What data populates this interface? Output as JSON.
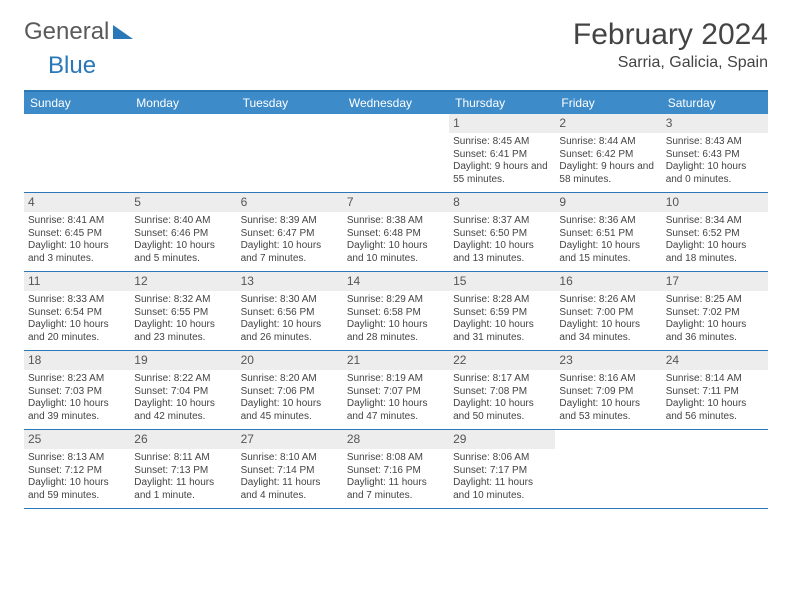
{
  "brand": {
    "part1": "General",
    "part2": "Blue"
  },
  "title": "February 2024",
  "location": "Sarria, Galicia, Spain",
  "colors": {
    "header_bg": "#3d8bc9",
    "border": "#2a78b8",
    "daynum_bg": "#ededed",
    "text": "#444444"
  },
  "dow": [
    "Sunday",
    "Monday",
    "Tuesday",
    "Wednesday",
    "Thursday",
    "Friday",
    "Saturday"
  ],
  "weeks": [
    [
      {
        "n": "",
        "sr": "",
        "ss": "",
        "dl": ""
      },
      {
        "n": "",
        "sr": "",
        "ss": "",
        "dl": ""
      },
      {
        "n": "",
        "sr": "",
        "ss": "",
        "dl": ""
      },
      {
        "n": "",
        "sr": "",
        "ss": "",
        "dl": ""
      },
      {
        "n": "1",
        "sr": "Sunrise: 8:45 AM",
        "ss": "Sunset: 6:41 PM",
        "dl": "Daylight: 9 hours and 55 minutes."
      },
      {
        "n": "2",
        "sr": "Sunrise: 8:44 AM",
        "ss": "Sunset: 6:42 PM",
        "dl": "Daylight: 9 hours and 58 minutes."
      },
      {
        "n": "3",
        "sr": "Sunrise: 8:43 AM",
        "ss": "Sunset: 6:43 PM",
        "dl": "Daylight: 10 hours and 0 minutes."
      }
    ],
    [
      {
        "n": "4",
        "sr": "Sunrise: 8:41 AM",
        "ss": "Sunset: 6:45 PM",
        "dl": "Daylight: 10 hours and 3 minutes."
      },
      {
        "n": "5",
        "sr": "Sunrise: 8:40 AM",
        "ss": "Sunset: 6:46 PM",
        "dl": "Daylight: 10 hours and 5 minutes."
      },
      {
        "n": "6",
        "sr": "Sunrise: 8:39 AM",
        "ss": "Sunset: 6:47 PM",
        "dl": "Daylight: 10 hours and 7 minutes."
      },
      {
        "n": "7",
        "sr": "Sunrise: 8:38 AM",
        "ss": "Sunset: 6:48 PM",
        "dl": "Daylight: 10 hours and 10 minutes."
      },
      {
        "n": "8",
        "sr": "Sunrise: 8:37 AM",
        "ss": "Sunset: 6:50 PM",
        "dl": "Daylight: 10 hours and 13 minutes."
      },
      {
        "n": "9",
        "sr": "Sunrise: 8:36 AM",
        "ss": "Sunset: 6:51 PM",
        "dl": "Daylight: 10 hours and 15 minutes."
      },
      {
        "n": "10",
        "sr": "Sunrise: 8:34 AM",
        "ss": "Sunset: 6:52 PM",
        "dl": "Daylight: 10 hours and 18 minutes."
      }
    ],
    [
      {
        "n": "11",
        "sr": "Sunrise: 8:33 AM",
        "ss": "Sunset: 6:54 PM",
        "dl": "Daylight: 10 hours and 20 minutes."
      },
      {
        "n": "12",
        "sr": "Sunrise: 8:32 AM",
        "ss": "Sunset: 6:55 PM",
        "dl": "Daylight: 10 hours and 23 minutes."
      },
      {
        "n": "13",
        "sr": "Sunrise: 8:30 AM",
        "ss": "Sunset: 6:56 PM",
        "dl": "Daylight: 10 hours and 26 minutes."
      },
      {
        "n": "14",
        "sr": "Sunrise: 8:29 AM",
        "ss": "Sunset: 6:58 PM",
        "dl": "Daylight: 10 hours and 28 minutes."
      },
      {
        "n": "15",
        "sr": "Sunrise: 8:28 AM",
        "ss": "Sunset: 6:59 PM",
        "dl": "Daylight: 10 hours and 31 minutes."
      },
      {
        "n": "16",
        "sr": "Sunrise: 8:26 AM",
        "ss": "Sunset: 7:00 PM",
        "dl": "Daylight: 10 hours and 34 minutes."
      },
      {
        "n": "17",
        "sr": "Sunrise: 8:25 AM",
        "ss": "Sunset: 7:02 PM",
        "dl": "Daylight: 10 hours and 36 minutes."
      }
    ],
    [
      {
        "n": "18",
        "sr": "Sunrise: 8:23 AM",
        "ss": "Sunset: 7:03 PM",
        "dl": "Daylight: 10 hours and 39 minutes."
      },
      {
        "n": "19",
        "sr": "Sunrise: 8:22 AM",
        "ss": "Sunset: 7:04 PM",
        "dl": "Daylight: 10 hours and 42 minutes."
      },
      {
        "n": "20",
        "sr": "Sunrise: 8:20 AM",
        "ss": "Sunset: 7:06 PM",
        "dl": "Daylight: 10 hours and 45 minutes."
      },
      {
        "n": "21",
        "sr": "Sunrise: 8:19 AM",
        "ss": "Sunset: 7:07 PM",
        "dl": "Daylight: 10 hours and 47 minutes."
      },
      {
        "n": "22",
        "sr": "Sunrise: 8:17 AM",
        "ss": "Sunset: 7:08 PM",
        "dl": "Daylight: 10 hours and 50 minutes."
      },
      {
        "n": "23",
        "sr": "Sunrise: 8:16 AM",
        "ss": "Sunset: 7:09 PM",
        "dl": "Daylight: 10 hours and 53 minutes."
      },
      {
        "n": "24",
        "sr": "Sunrise: 8:14 AM",
        "ss": "Sunset: 7:11 PM",
        "dl": "Daylight: 10 hours and 56 minutes."
      }
    ],
    [
      {
        "n": "25",
        "sr": "Sunrise: 8:13 AM",
        "ss": "Sunset: 7:12 PM",
        "dl": "Daylight: 10 hours and 59 minutes."
      },
      {
        "n": "26",
        "sr": "Sunrise: 8:11 AM",
        "ss": "Sunset: 7:13 PM",
        "dl": "Daylight: 11 hours and 1 minute."
      },
      {
        "n": "27",
        "sr": "Sunrise: 8:10 AM",
        "ss": "Sunset: 7:14 PM",
        "dl": "Daylight: 11 hours and 4 minutes."
      },
      {
        "n": "28",
        "sr": "Sunrise: 8:08 AM",
        "ss": "Sunset: 7:16 PM",
        "dl": "Daylight: 11 hours and 7 minutes."
      },
      {
        "n": "29",
        "sr": "Sunrise: 8:06 AM",
        "ss": "Sunset: 7:17 PM",
        "dl": "Daylight: 11 hours and 10 minutes."
      },
      {
        "n": "",
        "sr": "",
        "ss": "",
        "dl": ""
      },
      {
        "n": "",
        "sr": "",
        "ss": "",
        "dl": ""
      }
    ]
  ]
}
